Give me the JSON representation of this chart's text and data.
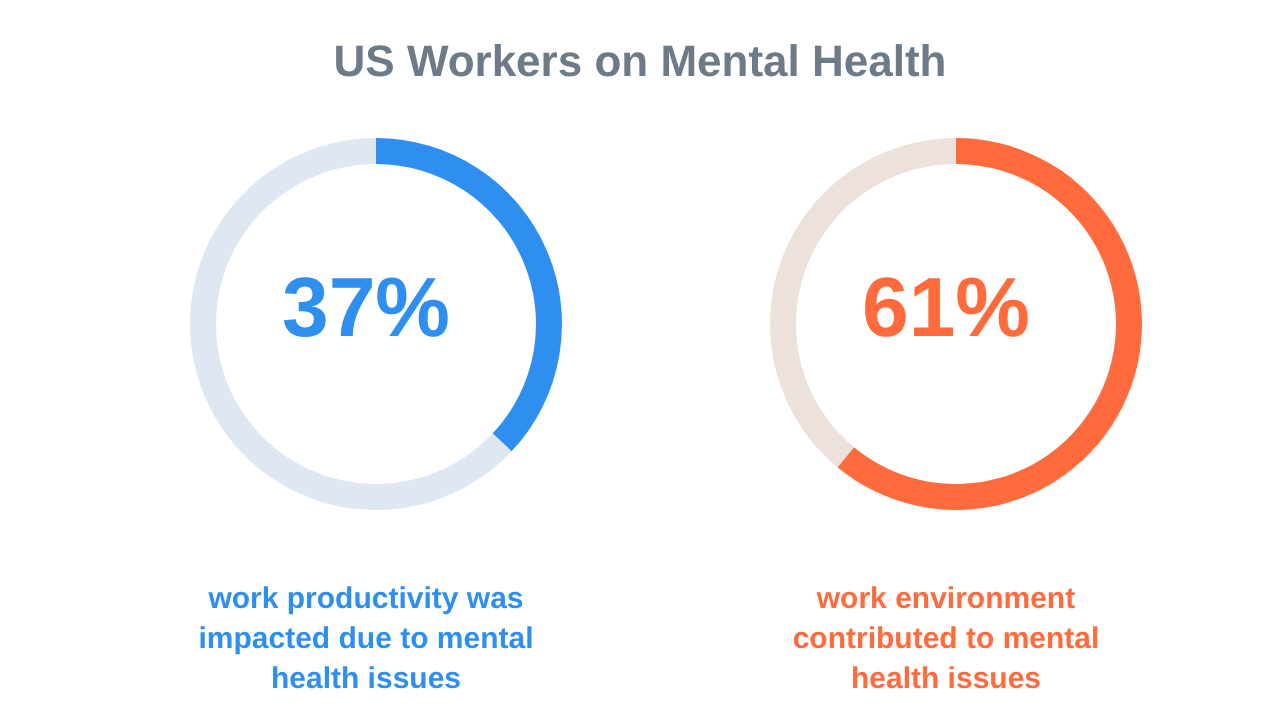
{
  "chart_data": [
    {
      "type": "donut",
      "title": "US Workers on Mental Health",
      "categories": [
        null,
        null
      ],
      "values": [
        37,
        63
      ],
      "colors": [
        "#2f8ff0",
        "#dfe7f2"
      ],
      "annotations": [
        "37%",
        "work productivity was impacted due to mental health issues"
      ]
    },
    {
      "type": "donut",
      "categories": [
        null,
        null
      ],
      "values": [
        61,
        39
      ],
      "colors": [
        "#ff6b3d",
        "#ece1db"
      ],
      "annotations": [
        "61%",
        "work environment contributed to mental health issues"
      ]
    }
  ]
}
